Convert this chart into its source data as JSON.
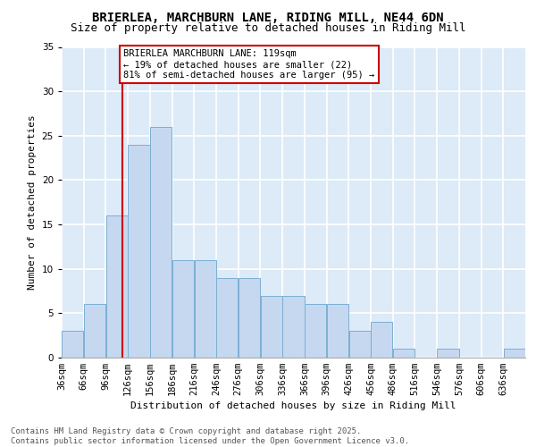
{
  "title1": "BRIERLEA, MARCHBURN LANE, RIDING MILL, NE44 6DN",
  "title2": "Size of property relative to detached houses in Riding Mill",
  "xlabel": "Distribution of detached houses by size in Riding Mill",
  "ylabel": "Number of detached properties",
  "bin_labels": [
    "36sqm",
    "66sqm",
    "96sqm",
    "126sqm",
    "156sqm",
    "186sqm",
    "216sqm",
    "246sqm",
    "276sqm",
    "306sqm",
    "336sqm",
    "366sqm",
    "396sqm",
    "426sqm",
    "456sqm",
    "486sqm",
    "516sqm",
    "546sqm",
    "576sqm",
    "606sqm",
    "636sqm"
  ],
  "bin_starts": [
    36,
    66,
    96,
    126,
    156,
    186,
    216,
    246,
    276,
    306,
    336,
    366,
    396,
    426,
    456,
    486,
    516,
    546,
    576,
    606,
    636
  ],
  "bin_width": 30,
  "bar_values": [
    3,
    6,
    16,
    24,
    26,
    11,
    11,
    9,
    9,
    7,
    7,
    6,
    6,
    3,
    4,
    1,
    0,
    1,
    0,
    0,
    1
  ],
  "bar_color": "#c5d8f0",
  "bar_edge_color": "#7bafd4",
  "bg_color": "#ddeaf7",
  "grid_color": "#ffffff",
  "vline_x": 119,
  "vline_color": "#cc0000",
  "annotation_text": "BRIERLEA MARCHBURN LANE: 119sqm\n← 19% of detached houses are smaller (22)\n81% of semi-detached houses are larger (95) →",
  "annotation_box_color": "#ffffff",
  "annotation_box_edge": "#cc0000",
  "ylim": [
    0,
    35
  ],
  "yticks": [
    0,
    5,
    10,
    15,
    20,
    25,
    30,
    35
  ],
  "footnote": "Contains HM Land Registry data © Crown copyright and database right 2025.\nContains public sector information licensed under the Open Government Licence v3.0.",
  "title_fontsize": 10,
  "subtitle_fontsize": 9,
  "axis_label_fontsize": 8,
  "tick_fontsize": 7.5,
  "annot_fontsize": 7.5,
  "footnote_fontsize": 6.5
}
